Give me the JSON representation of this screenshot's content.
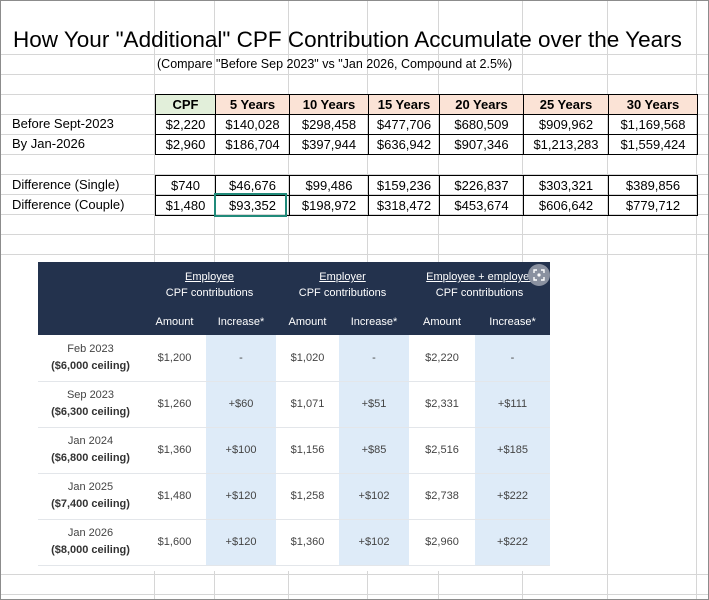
{
  "title": "How Your \"Additional\" CPF Contribution Accumulate over the Years",
  "subtitle": "(Compare \"Before Sep 2023\" vs \"Jan 2026, Compound at 2.5%)",
  "accumulation_table": {
    "headers": [
      "CPF",
      "5 Years",
      "10 Years",
      "15 Years",
      "20 Years",
      "25 Years",
      "30 Years"
    ],
    "rows": [
      {
        "label": "Before Sept-2023",
        "values": [
          "$2,220",
          "$140,028",
          "$298,458",
          "$477,706",
          "$680,509",
          "$909,962",
          "$1,169,568"
        ]
      },
      {
        "label": "By Jan-2026",
        "values": [
          "$2,960",
          "$186,704",
          "$397,944",
          "$636,942",
          "$907,346",
          "$1,213,283",
          "$1,559,424"
        ]
      }
    ]
  },
  "difference_table": {
    "rows": [
      {
        "label": "Difference (Single)",
        "values": [
          "$740",
          "$46,676",
          "$99,486",
          "$159,236",
          "$226,837",
          "$303,321",
          "$389,856"
        ]
      },
      {
        "label": "Difference (Couple)",
        "values": [
          "$1,480",
          "$93,352",
          "$198,972",
          "$318,472",
          "$453,674",
          "$606,642",
          "$779,712"
        ]
      }
    ]
  },
  "contributions_image": {
    "groups": [
      {
        "title": "Employee",
        "subtitle": "CPF contributions"
      },
      {
        "title": "Employer",
        "subtitle": "CPF contributions"
      },
      {
        "title": "Employee + employer",
        "subtitle": "CPF contributions"
      }
    ],
    "col_amount": "Amount",
    "col_increase": "Increase*",
    "rows": [
      {
        "date": "Feb 2023",
        "ceiling": "($6,000 ceiling)",
        "cells": [
          "$1,200",
          "-",
          "$1,020",
          "-",
          "$2,220",
          "-"
        ]
      },
      {
        "date": "Sep 2023",
        "ceiling": "($6,300 ceiling)",
        "cells": [
          "$1,260",
          "+$60",
          "$1,071",
          "+$51",
          "$2,331",
          "+$111"
        ]
      },
      {
        "date": "Jan 2024",
        "ceiling": "($6,800 ceiling)",
        "cells": [
          "$1,360",
          "+$100",
          "$1,156",
          "+$85",
          "$2,516",
          "+$185"
        ]
      },
      {
        "date": "Jan 2025",
        "ceiling": "($7,400 ceiling)",
        "cells": [
          "$1,480",
          "+$120",
          "$1,258",
          "+$102",
          "$2,738",
          "+$222"
        ]
      },
      {
        "date": "Jan 2026",
        "ceiling": "($8,000 ceiling)",
        "cells": [
          "$1,600",
          "+$120",
          "$1,360",
          "+$102",
          "$2,960",
          "+$222"
        ]
      }
    ]
  },
  "icons": {
    "expand": "expand-icon"
  },
  "colors": {
    "header_cpf": "#e2efda",
    "header_years": "#fbe3d6",
    "selection_border": "#208a7a",
    "image_header": "#23324d",
    "image_highlight": "#deebf8"
  }
}
